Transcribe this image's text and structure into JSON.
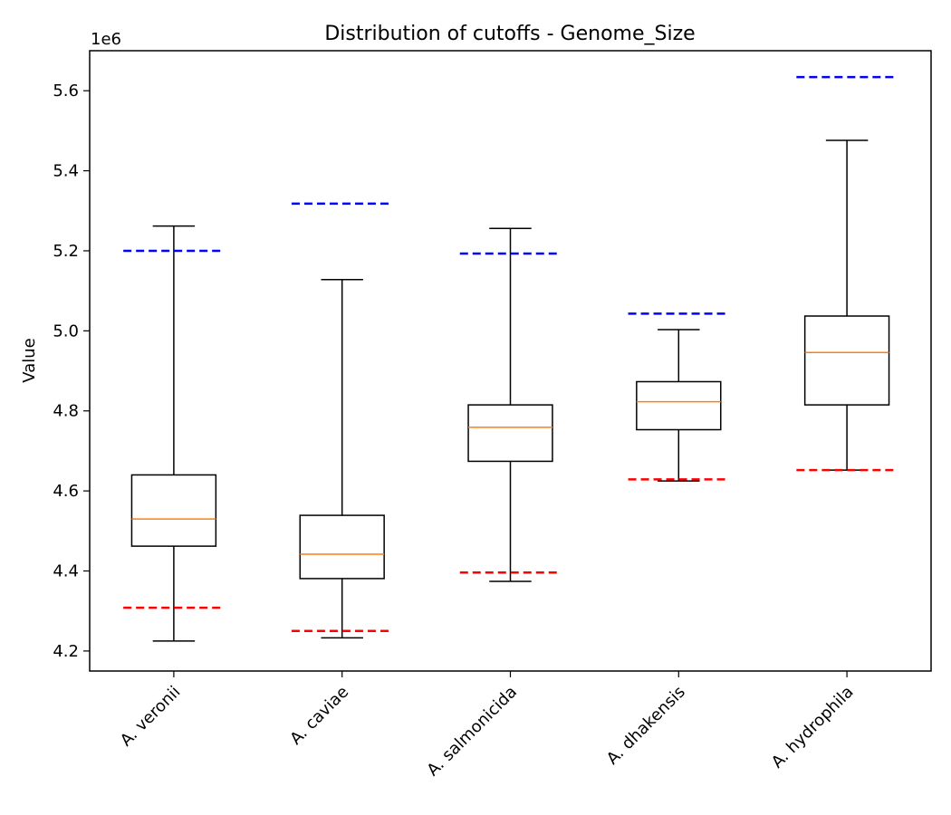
{
  "chart_data": {
    "type": "box",
    "title": "Distribution of cutoffs - Genome_Size",
    "xlabel": "",
    "ylabel": "Value",
    "y_scale_note": "1e6",
    "ylim": [
      4150000,
      5700000
    ],
    "y_ticks": [
      4200000,
      4400000,
      4600000,
      4800000,
      5000000,
      5200000,
      5400000,
      5600000
    ],
    "y_tick_labels": [
      "4.2",
      "4.4",
      "4.6",
      "4.8",
      "5.0",
      "5.2",
      "5.4",
      "5.6"
    ],
    "categories": [
      "A. veronii",
      "A. caviae",
      "A. salmonicida",
      "A. dhakensis",
      "A. hydrophila"
    ],
    "boxes": [
      {
        "whisker_low": 4225000,
        "q1": 4462000,
        "median": 4530000,
        "q3": 4640000,
        "whisker_high": 5262000,
        "lower_cutoff": 4308000,
        "upper_cutoff": 5200000
      },
      {
        "whisker_low": 4233000,
        "q1": 4381000,
        "median": 4442000,
        "q3": 4539000,
        "whisker_high": 5128000,
        "lower_cutoff": 4250000,
        "upper_cutoff": 5318000
      },
      {
        "whisker_low": 4374000,
        "q1": 4674000,
        "median": 4759000,
        "q3": 4815000,
        "whisker_high": 5256000,
        "lower_cutoff": 4396000,
        "upper_cutoff": 5193000
      },
      {
        "whisker_low": 4625000,
        "q1": 4753000,
        "median": 4823000,
        "q3": 4873000,
        "whisker_high": 5003000,
        "lower_cutoff": 4629000,
        "upper_cutoff": 5043000
      },
      {
        "whisker_low": 4652000,
        "q1": 4815000,
        "median": 4946000,
        "q3": 5037000,
        "whisker_high": 5476000,
        "lower_cutoff": 4652000,
        "upper_cutoff": 5634000
      }
    ],
    "colors": {
      "box": "#000000",
      "median": "#ff7f0e",
      "upper_cutoff": "#0000ff",
      "lower_cutoff": "#ff0000"
    },
    "grid": false,
    "legend": "none"
  }
}
